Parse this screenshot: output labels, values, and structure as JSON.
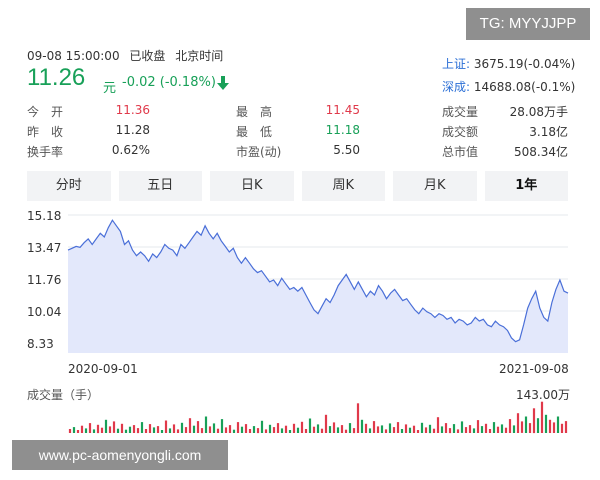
{
  "watermark": {
    "top": "TG: MYYJJPP",
    "bottom": "www.pc-aomenyongli.com"
  },
  "header": {
    "datetime": "09-08 15:00:00",
    "status": "已收盘",
    "timezone": "北京时间",
    "price": "11.26",
    "unit": "元",
    "change": "-0.02 (-0.18%)",
    "colors": {
      "down": "#18a058",
      "up": "#e0394a",
      "link": "#2b6fd6"
    }
  },
  "indices": [
    {
      "name": "上证:",
      "value": "3675.19(-0.04%)"
    },
    {
      "name": "深成:",
      "value": "14688.08(-0.1%)"
    }
  ],
  "stats": {
    "open_label": "今　开",
    "open": "11.36",
    "prev_label": "昨　收",
    "prev": "11.28",
    "turnover_label": "换手率",
    "turnover": "0.62%",
    "high_label": "最　高",
    "high": "11.45",
    "low_label": "最　低",
    "low": "11.18",
    "pe_label": "市盈(动)",
    "pe": "5.50",
    "volume_label": "成交量",
    "volume": "28.08万手",
    "amount_label": "成交额",
    "amount": "3.18亿",
    "mktcap_label": "总市值",
    "mktcap": "508.34亿"
  },
  "tabs": [
    "分时",
    "五日",
    "日K",
    "周K",
    "月K",
    "1年"
  ],
  "active_tab": "1年",
  "chart_data": {
    "type": "area",
    "ylim": [
      8.33,
      15.18
    ],
    "y_ticks": [
      "15.18",
      "13.47",
      "11.76",
      "10.04",
      "8.33"
    ],
    "x_start": "2020-09-01",
    "x_end": "2021-09-08",
    "values": [
      13.3,
      13.4,
      13.5,
      13.45,
      13.7,
      13.9,
      13.6,
      13.9,
      14.2,
      14.0,
      14.5,
      14.9,
      14.6,
      14.3,
      13.6,
      13.8,
      13.3,
      13.0,
      13.2,
      13.0,
      12.7,
      13.1,
      12.9,
      13.2,
      13.6,
      13.4,
      13.3,
      13.0,
      13.6,
      13.4,
      13.7,
      14.0,
      14.3,
      14.1,
      14.6,
      14.2,
      13.9,
      14.2,
      13.8,
      13.5,
      13.2,
      13.4,
      12.9,
      12.6,
      12.9,
      12.6,
      12.3,
      12.1,
      12.2,
      11.9,
      11.6,
      11.7,
      11.4,
      11.8,
      11.5,
      11.2,
      11.3,
      11.1,
      11.3,
      10.9,
      10.5,
      10.1,
      9.9,
      10.3,
      10.7,
      10.5,
      10.9,
      11.4,
      11.7,
      12.0,
      11.6,
      11.2,
      11.6,
      11.2,
      10.8,
      11.1,
      10.9,
      11.4,
      11.1,
      10.7,
      11.0,
      11.2,
      10.9,
      10.6,
      10.7,
      10.4,
      10.1,
      9.9,
      10.2,
      10.0,
      9.9,
      9.7,
      9.9,
      9.8,
      9.6,
      9.7,
      9.4,
      9.6,
      9.5,
      9.3,
      9.4,
      9.7,
      9.5,
      9.6,
      9.3,
      9.2,
      9.5,
      9.3,
      9.2,
      9.0,
      8.6,
      8.4,
      8.5,
      9.3,
      10.2,
      10.7,
      11.1,
      10.2,
      9.7,
      9.5,
      10.5,
      11.2,
      11.7,
      11.1,
      11.0
    ],
    "volume_label": "成交量（手）",
    "volume_max": "143.00万",
    "volumes": [
      0.12,
      0.18,
      0.09,
      0.22,
      0.14,
      0.3,
      0.11,
      0.25,
      0.16,
      0.4,
      0.2,
      0.35,
      0.13,
      0.28,
      0.1,
      0.19,
      0.24,
      0.15,
      0.33,
      0.12,
      0.27,
      0.17,
      0.21,
      0.09,
      0.38,
      0.14,
      0.26,
      0.11,
      0.31,
      0.18,
      0.45,
      0.22,
      0.36,
      0.15,
      0.5,
      0.2,
      0.29,
      0.13,
      0.42,
      0.17,
      0.24,
      0.1,
      0.33,
      0.19,
      0.27,
      0.12,
      0.21,
      0.15,
      0.37,
      0.11,
      0.25,
      0.18,
      0.3,
      0.14,
      0.22,
      0.09,
      0.28,
      0.16,
      0.34,
      0.12,
      0.44,
      0.19,
      0.26,
      0.13,
      0.55,
      0.21,
      0.32,
      0.17,
      0.24,
      0.1,
      0.3,
      0.15,
      0.9,
      0.4,
      0.28,
      0.14,
      0.36,
      0.2,
      0.23,
      0.11,
      0.29,
      0.18,
      0.33,
      0.12,
      0.26,
      0.16,
      0.22,
      0.09,
      0.31,
      0.17,
      0.25,
      0.13,
      0.48,
      0.2,
      0.3,
      0.15,
      0.27,
      0.11,
      0.35,
      0.18,
      0.24,
      0.14,
      0.39,
      0.21,
      0.28,
      0.12,
      0.33,
      0.19,
      0.26,
      0.16,
      0.42,
      0.23,
      0.6,
      0.35,
      0.5,
      0.3,
      0.75,
      0.45,
      0.95,
      0.55,
      0.4,
      0.32,
      0.5,
      0.28,
      0.36
    ],
    "volume_up": [
      true,
      false,
      true,
      true,
      false,
      true,
      false,
      true,
      true,
      false,
      true,
      true,
      false,
      true,
      false,
      false,
      true,
      true,
      false,
      true,
      true,
      false,
      true,
      false,
      true,
      false,
      true,
      true,
      false,
      true,
      true,
      false,
      true,
      true,
      false,
      true,
      false,
      true,
      false,
      true,
      true,
      false,
      true,
      false,
      true,
      true,
      false,
      true,
      false,
      true,
      false,
      true,
      true,
      false,
      true,
      false,
      true,
      false,
      true,
      true,
      false,
      true,
      false,
      true,
      true,
      false,
      true,
      false,
      true,
      true,
      false,
      true,
      true,
      false,
      true,
      false,
      true,
      true,
      false,
      true,
      false,
      true,
      true,
      false,
      true,
      false,
      true,
      true,
      false,
      true,
      false,
      true,
      true,
      false,
      true,
      true,
      false,
      true,
      false,
      true,
      true,
      false,
      true,
      false,
      true,
      true,
      false,
      true,
      false,
      true,
      true,
      false,
      true,
      true,
      false,
      true,
      true,
      false,
      true,
      false,
      true,
      true,
      false,
      true,
      true
    ]
  }
}
